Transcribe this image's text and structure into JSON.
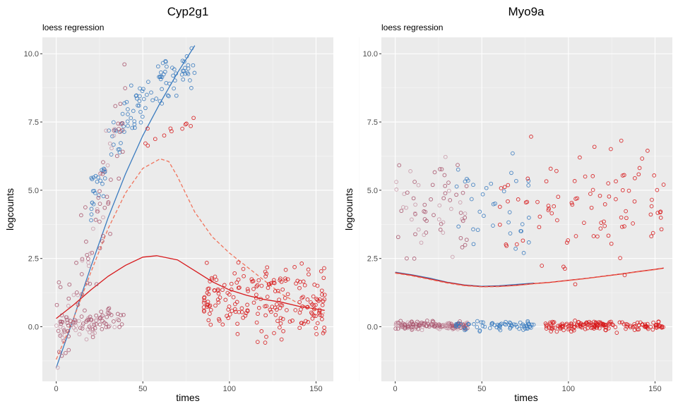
{
  "chart_data": [
    {
      "type": "scatter",
      "title": "Cyp2g1",
      "subtitle": "loess regression",
      "xlabel": "times",
      "ylabel": "logcounts",
      "xlim": [
        -8,
        160
      ],
      "ylim": [
        -2.0,
        10.6
      ],
      "xticks": [
        0,
        50,
        100,
        150
      ],
      "yticks": [
        0.0,
        2.5,
        5.0,
        7.5,
        10.0
      ],
      "ytick_labels": [
        "0.0",
        "2.5",
        "5.0",
        "7.5",
        "10.0"
      ],
      "grid": true,
      "colors": {
        "blue": "#3a7bbf",
        "red": "#d7191c",
        "mix": "#a8556e",
        "light": "#c999a8",
        "dashed": "#f0735c"
      },
      "scatter_groups": [
        {
          "color": "blue",
          "n": 120,
          "x": [
            20,
            80
          ],
          "profile": [
            [
              20,
              4.6
            ],
            [
              38,
              7.4
            ],
            [
              60,
              8.9
            ],
            [
              80,
              9.6
            ]
          ],
          "sd": 0.65
        },
        {
          "color": "mix",
          "n": 90,
          "x": [
            0,
            40
          ],
          "profile": [
            [
              0,
              0.2
            ],
            [
              10,
              0.6
            ],
            [
              20,
              2.5
            ],
            [
              30,
              6.0
            ],
            [
              40,
              7.6
            ]
          ],
          "sd": 1.6
        },
        {
          "color": "mix",
          "n": 80,
          "x": [
            0,
            40
          ],
          "profile": [
            [
              0,
              0.0
            ],
            [
              40,
              0.3
            ]
          ],
          "sd": 0.35
        },
        {
          "color": "red",
          "n": 210,
          "x": [
            85,
            155
          ],
          "profile": [
            [
              85,
              0.9
            ],
            [
              120,
              0.9
            ],
            [
              155,
              0.8
            ]
          ],
          "sd": 0.9
        },
        {
          "color": "red",
          "n": 12,
          "x": [
            50,
            80
          ],
          "profile": [
            [
              50,
              7.0
            ],
            [
              80,
              7.5
            ]
          ],
          "sd": 0.4
        }
      ],
      "lines": [
        {
          "color": "blue",
          "style": "solid",
          "x": [
            0,
            10,
            20,
            30,
            40,
            50,
            60,
            70,
            80
          ],
          "y": [
            -1.5,
            0.3,
            2.2,
            4.0,
            5.6,
            7.0,
            8.2,
            9.3,
            10.3
          ]
        },
        {
          "color": "red",
          "style": "solid",
          "x": [
            0,
            10,
            20,
            30,
            40,
            50,
            58,
            70,
            80,
            90,
            100,
            110,
            120,
            130,
            140,
            150,
            155
          ],
          "y": [
            0.3,
            0.8,
            1.35,
            1.85,
            2.25,
            2.55,
            2.6,
            2.45,
            2.05,
            1.65,
            1.35,
            1.15,
            1.0,
            0.9,
            0.75,
            0.65,
            0.6
          ]
        },
        {
          "color": "dashed",
          "style": "dashed",
          "x": [
            0,
            10,
            20,
            30,
            40,
            50,
            60,
            65,
            70,
            80,
            90,
            100,
            110,
            120,
            130,
            140,
            150,
            155
          ],
          "y": [
            -1.2,
            0.3,
            2.0,
            3.6,
            4.9,
            5.8,
            6.15,
            6.05,
            5.5,
            4.2,
            3.3,
            2.7,
            2.2,
            1.7,
            1.2,
            0.85,
            0.6,
            0.5
          ]
        }
      ]
    },
    {
      "type": "scatter",
      "title": "Myo9a",
      "subtitle": "loess regression",
      "xlabel": "times",
      "ylabel": "logcounts",
      "xlim": [
        -8,
        160
      ],
      "ylim": [
        -2.0,
        10.6
      ],
      "xticks": [
        0,
        50,
        100,
        150
      ],
      "yticks": [
        0.0,
        2.5,
        5.0,
        7.5,
        10.0
      ],
      "ytick_labels": [
        "0.0",
        "2.5",
        "5.0",
        "7.5",
        "10.0"
      ],
      "grid": true,
      "colors": {
        "blue": "#3a7bbf",
        "red": "#d7191c",
        "mix": "#a8556e",
        "light": "#c999a8",
        "dashed": "#f0735c"
      },
      "scatter_groups": [
        {
          "color": "mix",
          "n": 150,
          "x": [
            0,
            42
          ],
          "profile": [
            [
              0,
              0.05
            ],
            [
              42,
              0.05
            ]
          ],
          "sd": 0.12
        },
        {
          "color": "mix",
          "n": 65,
          "x": [
            0,
            42
          ],
          "profile": [
            [
              0,
              4.6
            ],
            [
              42,
              4.3
            ]
          ],
          "sd": 1.3
        },
        {
          "color": "blue",
          "n": 70,
          "x": [
            35,
            80
          ],
          "profile": [
            [
              35,
              0.05
            ],
            [
              80,
              0.05
            ]
          ],
          "sd": 0.12
        },
        {
          "color": "blue",
          "n": 35,
          "x": [
            35,
            80
          ],
          "profile": [
            [
              35,
              5.0
            ],
            [
              80,
              4.0
            ]
          ],
          "sd": 1.3
        },
        {
          "color": "red",
          "n": 160,
          "x": [
            85,
            155
          ],
          "profile": [
            [
              85,
              0.05
            ],
            [
              155,
              0.05
            ]
          ],
          "sd": 0.12
        },
        {
          "color": "red",
          "n": 95,
          "x": [
            60,
            155
          ],
          "profile": [
            [
              60,
              4.3
            ],
            [
              155,
              4.3
            ]
          ],
          "sd": 1.5
        }
      ],
      "lines": [
        {
          "color": "blue",
          "style": "solid",
          "x": [
            0,
            10,
            20,
            30,
            40,
            50,
            60,
            70,
            80
          ],
          "y": [
            2.0,
            1.9,
            1.78,
            1.63,
            1.53,
            1.48,
            1.5,
            1.55,
            1.6
          ]
        },
        {
          "color": "red",
          "style": "solid",
          "x": [
            0,
            10,
            20,
            30,
            40,
            50,
            60,
            70,
            80,
            90,
            100,
            110,
            120,
            130,
            140,
            150,
            155
          ],
          "y": [
            1.98,
            1.88,
            1.75,
            1.62,
            1.52,
            1.47,
            1.48,
            1.52,
            1.58,
            1.63,
            1.7,
            1.77,
            1.85,
            1.93,
            2.02,
            2.1,
            2.15
          ]
        },
        {
          "color": "dashed",
          "style": "dashed",
          "x": [
            0,
            10,
            20,
            30,
            40,
            50,
            60,
            70,
            80,
            90,
            100,
            110,
            120,
            130,
            140,
            150,
            155
          ],
          "y": [
            1.96,
            1.86,
            1.73,
            1.6,
            1.5,
            1.46,
            1.47,
            1.51,
            1.57,
            1.62,
            1.69,
            1.76,
            1.84,
            1.92,
            2.01,
            2.09,
            2.14
          ]
        }
      ]
    }
  ]
}
